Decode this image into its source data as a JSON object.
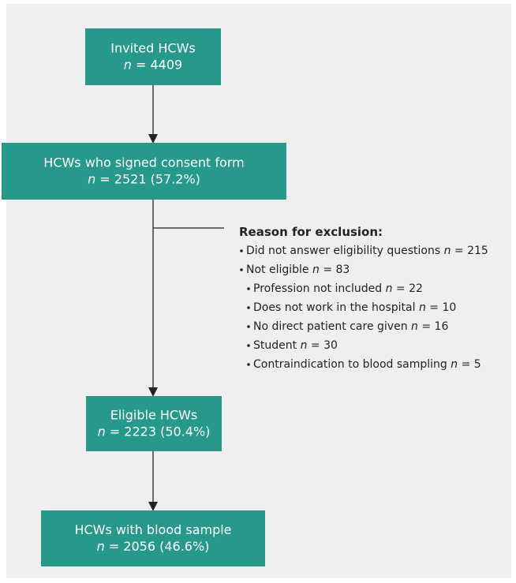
{
  "nodes": [
    {
      "lines": [
        "Invited HCWs",
        "n = 4409"
      ]
    },
    {
      "lines": [
        "HCWs who signed consent form",
        "n = 2521 (57.2%)"
      ]
    },
    {
      "lines": [
        "Eligible HCWs",
        "n = 2223 (50.4%)"
      ]
    },
    {
      "lines": [
        "HCWs with blood sample",
        "n = 2056 (46.6%)"
      ]
    }
  ],
  "exclusion": {
    "title": "Reason for exclusion:",
    "items": [
      "Did not answer eligibility questions n = 215",
      "Not eligible n = 83"
    ],
    "subitems": [
      "Profession not included n = 22",
      "Does not work in the hospital n = 10",
      "No direct patient care given n = 16",
      "Student n = 30",
      "Contraindication to blood sampling n = 5"
    ]
  }
}
